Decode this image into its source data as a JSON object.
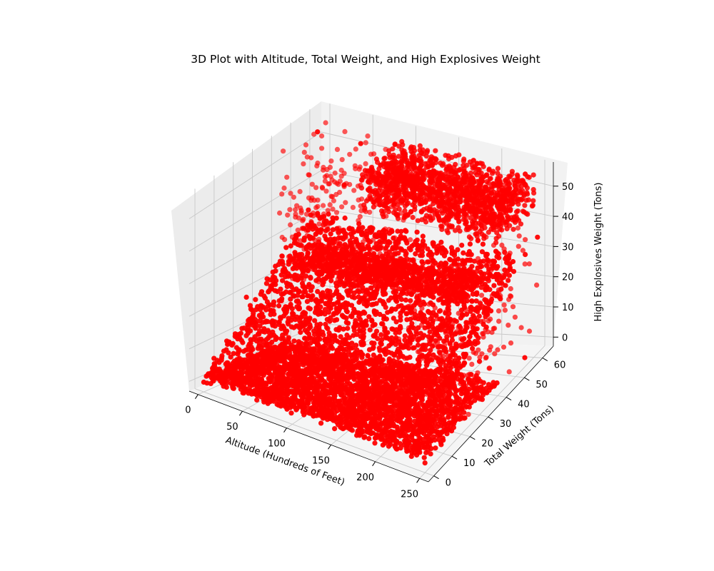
{
  "chart_data": {
    "type": "scatter",
    "projection": "3d",
    "title": "3D Plot with Altitude, Total Weight, and High Explosives Weight",
    "xlabel": "Altitude (Hundreds of Feet)",
    "ylabel": "Total Weight (Tons)",
    "zlabel": "High Explosives Weight (Tons)",
    "xlim": [
      -10,
      260
    ],
    "ylim": [
      -3,
      66
    ],
    "zlim": [
      -3,
      58
    ],
    "xticks": [
      0,
      50,
      100,
      150,
      200,
      250
    ],
    "yticks": [
      0,
      10,
      20,
      30,
      40,
      50,
      60
    ],
    "zticks": [
      0,
      10,
      20,
      30,
      40,
      50
    ],
    "grid": true,
    "marker_color": "#ff0000",
    "series": [
      {
        "structure": "dense sheets where high explosives weight tracks total weight, altitude spanning about 0 to 250",
        "points": [
          [
            0,
            0,
            0
          ],
          [
            250,
            0,
            0
          ],
          [
            250,
            55,
            0
          ],
          [
            0,
            55,
            0
          ],
          [
            0,
            5,
            2
          ],
          [
            50,
            10,
            5
          ],
          [
            100,
            15,
            8
          ],
          [
            150,
            20,
            10
          ],
          [
            200,
            25,
            12
          ],
          [
            250,
            30,
            14
          ],
          [
            20,
            40,
            20
          ],
          [
            80,
            45,
            22
          ],
          [
            140,
            50,
            25
          ],
          [
            200,
            55,
            27
          ],
          [
            240,
            60,
            30
          ],
          [
            10,
            55,
            55
          ],
          [
            60,
            55,
            55
          ],
          [
            120,
            55,
            55
          ],
          [
            180,
            60,
            56
          ],
          [
            240,
            60,
            56
          ],
          [
            30,
            60,
            40
          ],
          [
            90,
            60,
            45
          ],
          [
            150,
            62,
            50
          ],
          [
            210,
            60,
            38
          ],
          [
            250,
            62,
            35
          ],
          [
            5,
            20,
            20
          ],
          [
            40,
            30,
            25
          ],
          [
            100,
            30,
            28
          ],
          [
            160,
            35,
            30
          ],
          [
            230,
            40,
            32
          ]
        ]
      }
    ]
  }
}
